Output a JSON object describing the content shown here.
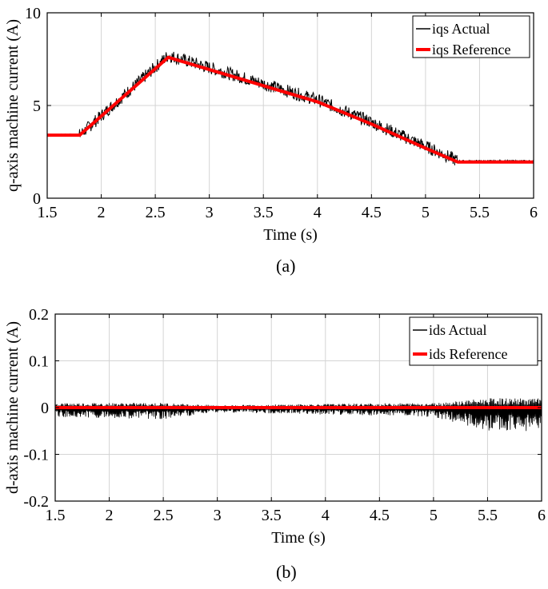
{
  "chart_data": [
    {
      "type": "line",
      "panel_label": "(a)",
      "xlabel": "Time (s)",
      "ylabel": "q-axis machine current (A)",
      "xlim": [
        1.5,
        6
      ],
      "ylim": [
        0,
        10
      ],
      "xticks": [
        1.5,
        2,
        2.5,
        3,
        3.5,
        4,
        4.5,
        5,
        5.5,
        6
      ],
      "xtick_labels": [
        "1.5",
        "2",
        "2.5",
        "3",
        "3.5",
        "4",
        "4.5",
        "5",
        "5.5",
        "6"
      ],
      "yticks": [
        0,
        5,
        10
      ],
      "ytick_labels": [
        "0",
        "5",
        "10"
      ],
      "grid": true,
      "legend_position": "top-right",
      "series": [
        {
          "name": "iqs Actual",
          "color": "#000000",
          "noise_amplitude": 0.35,
          "x": [
            1.5,
            1.8,
            2.62,
            4.0,
            4.5,
            5.0,
            5.3,
            6.0
          ],
          "y": [
            3.4,
            3.4,
            7.7,
            5.3,
            4.1,
            2.8,
            2.0,
            2.0
          ]
        },
        {
          "name": "iqs Reference",
          "color": "#ff0000",
          "x": [
            1.5,
            1.8,
            2.62,
            4.0,
            4.5,
            5.0,
            5.3,
            6.0
          ],
          "y": [
            3.4,
            3.4,
            7.6,
            5.2,
            4.0,
            2.7,
            1.95,
            1.95
          ]
        }
      ]
    },
    {
      "type": "line",
      "panel_label": "(b)",
      "xlabel": "Time (s)",
      "ylabel": "d-axis machine current (A)",
      "xlim": [
        1.5,
        6
      ],
      "ylim": [
        -0.2,
        0.2
      ],
      "xticks": [
        1.5,
        2,
        2.5,
        3,
        3.5,
        4,
        4.5,
        5,
        5.5,
        6
      ],
      "xtick_labels": [
        "1.5",
        "2",
        "2.5",
        "3",
        "3.5",
        "4",
        "4.5",
        "5",
        "5.5",
        "6"
      ],
      "yticks": [
        -0.2,
        -0.1,
        0,
        0.1,
        0.2
      ],
      "ytick_labels": [
        "-0.2",
        "-0.1",
        "0",
        "0.1",
        "0.2"
      ],
      "grid": true,
      "legend_position": "top-right",
      "series": [
        {
          "name": "ids Actual",
          "color": "#000000",
          "noise_envelope_x": [
            1.5,
            2.5,
            3.0,
            4.0,
            5.0,
            5.5,
            6.0
          ],
          "noise_envelope_upper": [
            0.01,
            0.01,
            0.005,
            0.008,
            0.01,
            0.02,
            0.02
          ],
          "noise_envelope_lower": [
            -0.02,
            -0.025,
            -0.01,
            -0.015,
            -0.02,
            -0.05,
            -0.05
          ]
        },
        {
          "name": "ids Reference",
          "color": "#ff0000",
          "x": [
            1.5,
            6.0
          ],
          "y": [
            0,
            0
          ]
        }
      ]
    }
  ]
}
